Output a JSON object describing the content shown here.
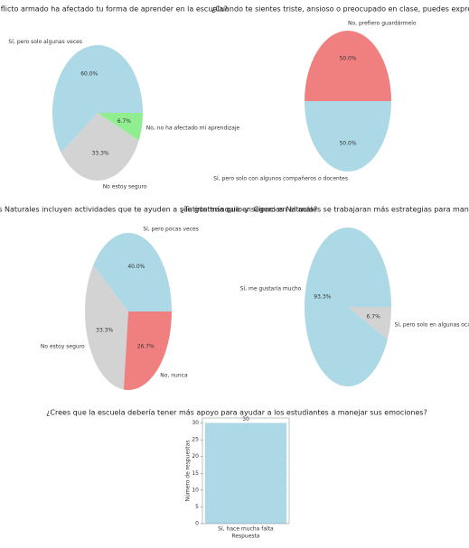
{
  "chart_data": [
    {
      "type": "pie",
      "title": "¿El conflicto armado ha afectado tu forma de aprender en la escuela?",
      "categories": [
        "Sí, pero solo algunas veces",
        "No estoy seguro",
        "No, no ha afectado mi aprendizaje"
      ],
      "values": [
        60.0,
        33.3,
        6.7
      ],
      "value_labels": [
        "60.0%",
        "33.3%",
        "6.7%"
      ],
      "colors": [
        "#add8e6",
        "#d3d3d3",
        "#90ee90"
      ]
    },
    {
      "type": "pie",
      "title": "¿Cuando te sientes triste, ansioso o preocupado en clase, puedes expresarlo?",
      "categories": [
        "No, prefiero guardármelo",
        "Sí, pero solo con algunos compañeros o docentes"
      ],
      "values": [
        50.0,
        50.0
      ],
      "value_labels": [
        "50.0%",
        "50.0%"
      ],
      "colors": [
        "#f08080",
        "#add8e6"
      ]
    },
    {
      "type": "pie",
      "title": "¿Las clases de Ciencias Naturales incluyen actividades que te ayuden a sentirte tranquilo y seguro en el aula?",
      "categories": [
        "Sí, pero pocas veces",
        "No estoy seguro",
        "No, nunca"
      ],
      "values": [
        40.0,
        33.3,
        26.7
      ],
      "value_labels": [
        "40.0%",
        "33.3%",
        "26.7%"
      ],
      "colors": [
        "#add8e6",
        "#d3d3d3",
        "#f08080"
      ]
    },
    {
      "type": "pie",
      "title": "¿Te gustaría que en Ciencias Naturales se trabajaran más estrategias para manejar emociones?",
      "categories": [
        "Sí, me gustaría mucho",
        "Sí, pero solo en algunas ocasiones"
      ],
      "values": [
        93.3,
        6.7
      ],
      "value_labels": [
        "93.3%",
        "6.7%"
      ],
      "colors": [
        "#add8e6",
        "#d3d3d3"
      ]
    },
    {
      "type": "bar",
      "title": "¿Crees que la escuela debería tener más apoyo para ayudar a los estudiantes a manejar sus emociones?",
      "categories": [
        "Sí, hace mucha falta"
      ],
      "values": [
        30
      ],
      "color": "#add8e6",
      "xlabel": "Respuesta",
      "ylabel": "Número de respuestas",
      "ylim": [
        0,
        31.5
      ],
      "yticks": [
        0,
        5,
        10,
        15,
        20,
        25,
        30
      ],
      "grid": true
    }
  ]
}
